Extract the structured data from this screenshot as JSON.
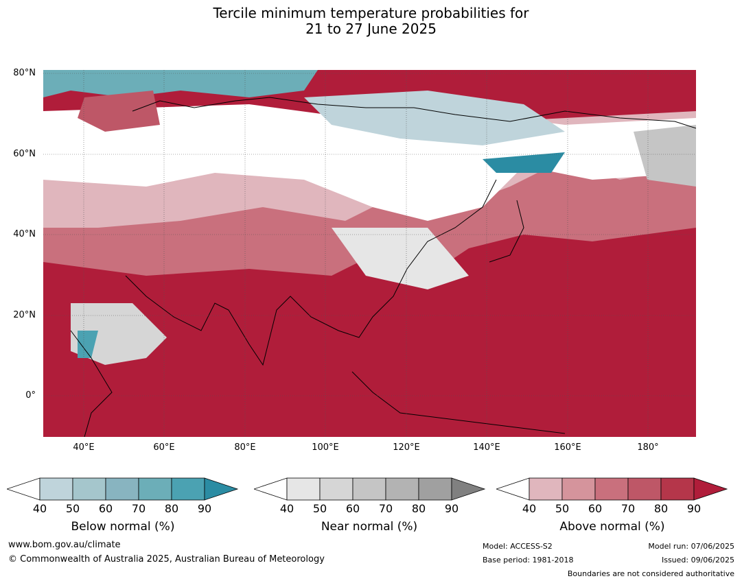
{
  "title": {
    "line1": "Tercile minimum temperature probabilities for",
    "line2": "21 to 27 June 2025"
  },
  "map": {
    "lat_labels": [
      "80°N",
      "60°N",
      "40°N",
      "20°N",
      "0°"
    ],
    "lon_labels": [
      "40°E",
      "60°E",
      "80°E",
      "100°E",
      "120°E",
      "140°E",
      "160°E",
      "180°"
    ]
  },
  "colorbars": [
    {
      "label": "Below normal (%)",
      "ticks": [
        "40",
        "50",
        "60",
        "70",
        "80",
        "90"
      ],
      "colors": [
        "#ffffff",
        "#bfd4db",
        "#a5c6cc",
        "#88b4c0",
        "#6caeb8",
        "#4ba2b2",
        "#2b8ca3"
      ]
    },
    {
      "label": "Near normal (%)",
      "ticks": [
        "40",
        "50",
        "60",
        "70",
        "80",
        "90"
      ],
      "colors": [
        "#ffffff",
        "#e6e6e6",
        "#d6d6d6",
        "#c5c5c5",
        "#b3b3b3",
        "#a0a0a0",
        "#808080"
      ]
    },
    {
      "label": "Above normal (%)",
      "ticks": [
        "40",
        "50",
        "60",
        "70",
        "80",
        "90"
      ],
      "colors": [
        "#ffffff",
        "#e0b6bd",
        "#d5949c",
        "#c9707d",
        "#be5767",
        "#b5364a",
        "#b01d3a"
      ]
    }
  ],
  "footer": {
    "url": "www.bom.gov.au/climate",
    "copyright": "© Commonwealth of Australia 2025, Australian Bureau of Meteorology",
    "model": "Model: ACCESS-S2",
    "base_period": "Base period: 1981-2018",
    "model_run": "Model run: 07/06/2025",
    "issued": "Issued: 09/06/2025",
    "boundaries": "Boundaries are not considered authoritative"
  }
}
